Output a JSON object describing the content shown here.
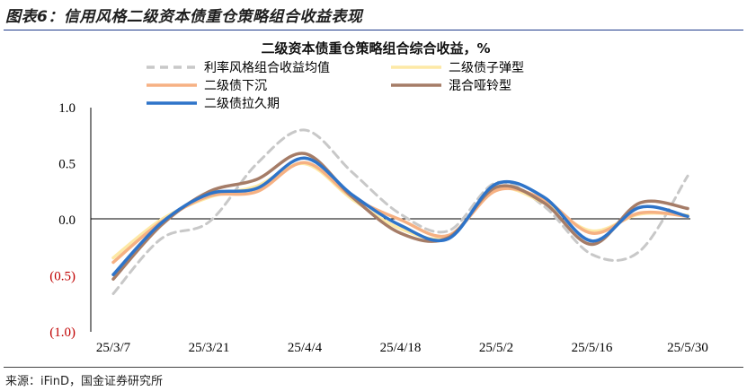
{
  "figure": {
    "title": "图表6：信用风格二级资本债重仓策略组合收益表现",
    "source": "来源：iFinD，国金证券研究所"
  },
  "chart_data": {
    "type": "line",
    "title": "二级资本债重仓策略组合综合收益，%",
    "x_tick_labels": [
      "25/3/7",
      "25/3/21",
      "25/4/4",
      "25/4/18",
      "25/5/2",
      "25/5/16",
      "25/5/30"
    ],
    "y_tick_labels": [
      "1.0",
      "0.5",
      "0.0",
      "(0.5)",
      "(1.0)"
    ],
    "ylim": [
      -1.0,
      1.0
    ],
    "grid": false,
    "legend_position": "top",
    "x": [
      "25/3/7",
      "25/3/14",
      "25/3/21",
      "25/3/28",
      "25/4/4",
      "25/4/11",
      "25/4/18",
      "25/4/25",
      "25/5/2",
      "25/5/9",
      "25/5/16",
      "25/5/23",
      "25/5/30"
    ],
    "series": [
      {
        "name": "利率风格组合收益均值",
        "color": "#c8c8c8",
        "dash": true,
        "values": [
          -0.66,
          -0.17,
          -0.02,
          0.5,
          0.8,
          0.42,
          0.05,
          -0.1,
          0.33,
          0.12,
          -0.31,
          -0.28,
          0.39
        ]
      },
      {
        "name": "二级债子弹型",
        "color": "#fde9a6",
        "dash": false,
        "values": [
          -0.34,
          0.0,
          0.2,
          0.3,
          0.5,
          0.18,
          -0.08,
          -0.15,
          0.27,
          0.15,
          -0.1,
          0.05,
          0.04
        ]
      },
      {
        "name": "二级债下沉",
        "color": "#f6b183",
        "dash": false,
        "values": [
          -0.38,
          -0.02,
          0.21,
          0.25,
          0.51,
          0.2,
          0.0,
          -0.14,
          0.26,
          0.18,
          -0.12,
          0.06,
          0.03
        ]
      },
      {
        "name": "混合哑铃型",
        "color": "#a57c67",
        "dash": false,
        "values": [
          -0.53,
          -0.05,
          0.25,
          0.36,
          0.59,
          0.2,
          -0.12,
          -0.16,
          0.29,
          0.15,
          -0.22,
          0.15,
          0.1
        ]
      },
      {
        "name": "二级债拉久期",
        "color": "#2e74c9",
        "dash": false,
        "values": [
          -0.49,
          -0.03,
          0.23,
          0.28,
          0.55,
          0.22,
          -0.05,
          -0.17,
          0.32,
          0.2,
          -0.19,
          0.11,
          0.03
        ]
      }
    ]
  }
}
